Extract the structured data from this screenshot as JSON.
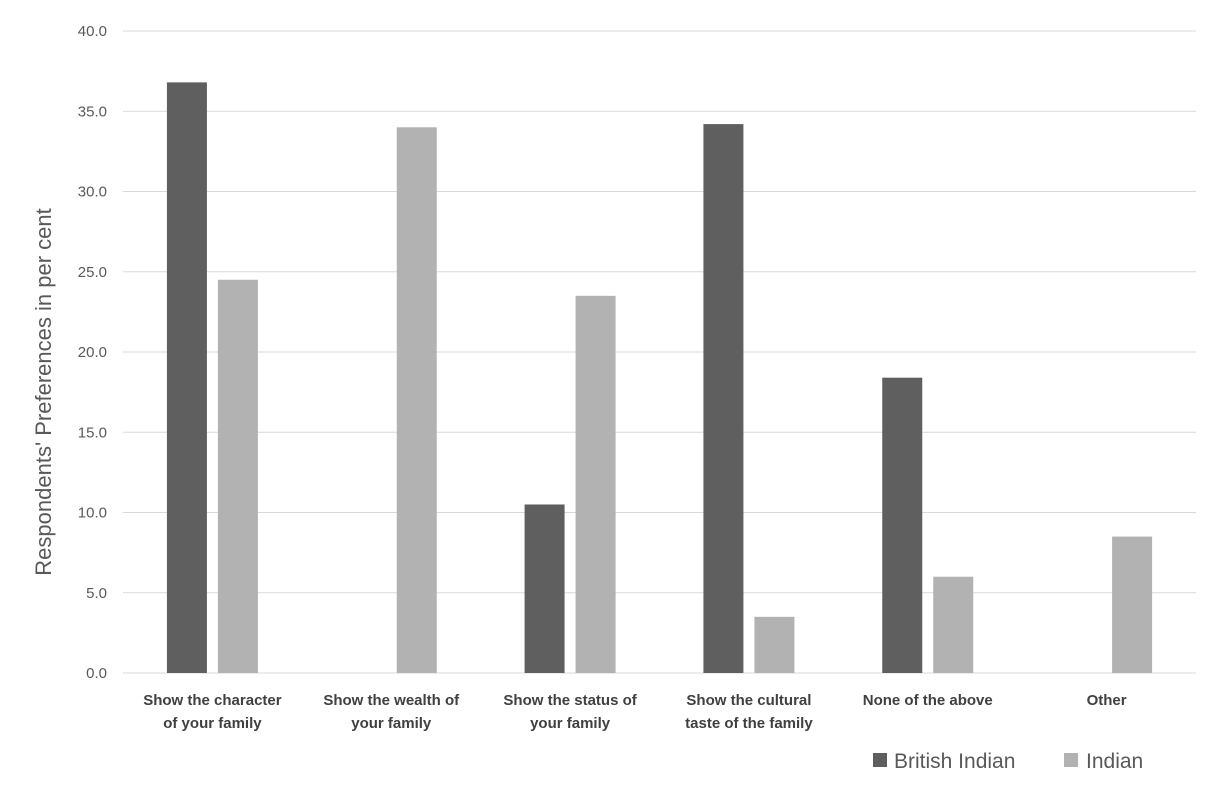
{
  "chart_data": {
    "type": "bar",
    "title": "",
    "xlabel": "",
    "ylabel": "Respondents' Preferences in per cent",
    "ylim": [
      0,
      40
    ],
    "ytick_step": 5,
    "ytick_labels": [
      "0.0",
      "5.0",
      "10.0",
      "15.0",
      "20.0",
      "25.0",
      "30.0",
      "35.0",
      "40.0"
    ],
    "grid": true,
    "legend_position": "bottom-right",
    "categories": [
      [
        "Show the character",
        "of your family"
      ],
      [
        "Show the wealth of",
        "your family"
      ],
      [
        "Show the status of",
        "your family"
      ],
      [
        "Show the cultural",
        "taste of the family"
      ],
      [
        "None of the above"
      ],
      [
        "Other"
      ]
    ],
    "series": [
      {
        "name": "British Indian",
        "color": "#5f5f5f",
        "values": [
          36.8,
          0,
          10.5,
          34.2,
          18.4,
          0
        ]
      },
      {
        "name": "Indian",
        "color": "#b2b2b2",
        "values": [
          24.5,
          34.0,
          23.5,
          3.5,
          6.0,
          8.5
        ]
      }
    ]
  }
}
